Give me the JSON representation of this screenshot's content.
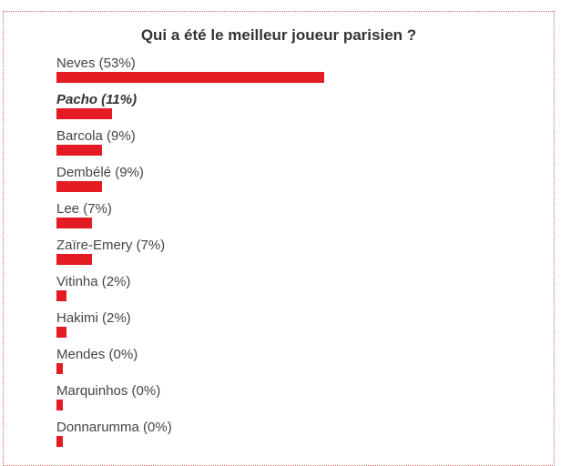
{
  "poll": {
    "title": "Qui a été le meilleur joueur parisien ?",
    "bar_color": "#e31b23",
    "options": [
      {
        "label": "Neves (53%)",
        "percent": 53,
        "selected": false
      },
      {
        "label": "Pacho (11%)",
        "percent": 11,
        "selected": true
      },
      {
        "label": "Barcola (9%)",
        "percent": 9,
        "selected": false
      },
      {
        "label": "Dembélé (9%)",
        "percent": 9,
        "selected": false
      },
      {
        "label": "Lee (7%)",
        "percent": 7,
        "selected": false
      },
      {
        "label": "Zaïre-Emery (7%)",
        "percent": 7,
        "selected": false
      },
      {
        "label": "Vitinha (2%)",
        "percent": 2,
        "selected": false
      },
      {
        "label": "Hakimi (2%)",
        "percent": 2,
        "selected": false
      },
      {
        "label": "Mendes (0%)",
        "percent": 0,
        "selected": false
      },
      {
        "label": "Marquinhos (0%)",
        "percent": 0,
        "selected": false
      },
      {
        "label": "Donnarumma (0%)",
        "percent": 0,
        "selected": false
      }
    ]
  }
}
